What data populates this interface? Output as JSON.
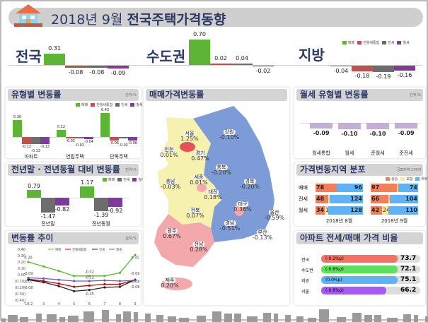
{
  "header": {
    "year_month": "2018년 9월",
    "title": "전국주택가격동향"
  },
  "colors": {
    "sale": "#5db536",
    "total": "#c0504d",
    "jeonse": "#6d6d6d",
    "monthly": "#7d3c98",
    "monthly_light": "#c3aed6",
    "rise": "#f47d5a",
    "flat": "#ffe699",
    "fall": "#5fb3f5"
  },
  "legend": {
    "sale": "매매",
    "total": "전월세통합",
    "jeonse": "전세",
    "monthly": "월세"
  },
  "summary": [
    {
      "region": "전국",
      "values": [
        0.31,
        -0.08,
        -0.08,
        -0.09
      ]
    },
    {
      "region": "수도권",
      "values": [
        0.7,
        0.02,
        0.04,
        -0.02
      ]
    },
    {
      "region": "지방",
      "values": [
        -0.04,
        -0.18,
        -0.19,
        -0.16
      ]
    }
  ],
  "type_change": {
    "title": "유형별 변동률",
    "unit": "단위:%",
    "groups": [
      {
        "label": "아파트",
        "values": [
          0.3,
          -0.12,
          -0.13,
          -0.13
        ]
      },
      {
        "label": "연립주택",
        "values": [
          0.12,
          -0.02,
          -0.02,
          -0.04
        ]
      },
      {
        "label": "단독주택",
        "values": [
          0.43,
          -0.06,
          -0.02,
          -0.06
        ]
      }
    ]
  },
  "yoy_change": {
    "title": "전년말 · 전년동월 대비 변동률",
    "unit": "단위:%",
    "groups": [
      {
        "label": "전년말",
        "values": [
          0.79,
          -1.47,
          -0.82
        ]
      },
      {
        "label": "전년동월",
        "values": [
          1.17,
          -1.39,
          -0.92
        ]
      }
    ]
  },
  "trend": {
    "title": "변동률 추이",
    "unit": "단위:%",
    "x": [
      "'18.2",
      "3",
      "4",
      "5",
      "6",
      "7",
      "8",
      "9"
    ],
    "yticks": [
      "0.40",
      "0.30",
      "0.20",
      "0.10",
      "0.00",
      "(0.10)",
      "(0.20)",
      "(0.30)",
      "(0.40)"
    ],
    "ylim": [
      -0.4,
      0.4
    ],
    "series": [
      {
        "name": "매매",
        "values": [
          0.2,
          0.13,
          0.06,
          -0.02,
          -0.02,
          -0.02,
          0.03,
          0.31
        ]
      },
      {
        "name": "전월세통합",
        "values": [
          -0.07,
          -0.1,
          -0.14,
          -0.19,
          -0.17,
          -0.15,
          -0.15,
          -0.08
        ]
      },
      {
        "name": "전세",
        "values": [
          -0.08,
          -0.12,
          -0.18,
          -0.26,
          -0.24,
          -0.2,
          -0.19,
          -0.08
        ]
      },
      {
        "name": "월세",
        "values": [
          -0.05,
          -0.06,
          -0.08,
          -0.1,
          -0.1,
          -0.09,
          -0.1,
          -0.09
        ]
      }
    ],
    "annotations": [
      "0.20",
      "-0.09",
      "-0.07",
      "-0.08",
      "-0.02",
      "-0.12",
      "-0.25",
      "0.31",
      "-0.09",
      "-0.08",
      "-0.08"
    ]
  },
  "map": {
    "title": "매매가격변동률",
    "regions": [
      {
        "name": "서울",
        "value": "1.25%"
      },
      {
        "name": "인천",
        "value": "0.01%"
      },
      {
        "name": "경기",
        "value": "0.47%"
      },
      {
        "name": "강원",
        "value": "-0.10%"
      },
      {
        "name": "충북",
        "value": "-0.20%"
      },
      {
        "name": "세종",
        "value": "0.01%"
      },
      {
        "name": "충남",
        "value": "-0.03%"
      },
      {
        "name": "대전",
        "value": "0.18%"
      },
      {
        "name": "경북",
        "value": "-0.20%"
      },
      {
        "name": "대구",
        "value": "0.36%"
      },
      {
        "name": "전북",
        "value": "0.07%"
      },
      {
        "name": "울산",
        "value": "-0.59%"
      },
      {
        "name": "경남",
        "value": "-0.51%"
      },
      {
        "name": "부산",
        "value": "-0.13%"
      },
      {
        "name": "광주",
        "value": "0.67%"
      },
      {
        "name": "전남",
        "value": "0.28%"
      },
      {
        "name": "제주",
        "value": "0.20%"
      }
    ]
  },
  "monthly_type": {
    "title": "월세 유형별 변동률",
    "unit": "단위:%",
    "items": [
      {
        "label": "월세통합",
        "value": -0.09
      },
      {
        "label": "월세",
        "value": -0.1
      },
      {
        "label": "준월세",
        "value": -0.1
      },
      {
        "label": "준전세",
        "value": -0.09
      }
    ]
  },
  "distribution": {
    "title": "가격변동지역 분포",
    "unit": "공표지역 176개",
    "legend": [
      "상승",
      "보합",
      "하락"
    ],
    "rows": [
      "매매",
      "전세",
      "월세"
    ],
    "periods": [
      {
        "label": "2018년 8월",
        "data": [
          [
            78,
            2,
            96
          ],
          [
            48,
            4,
            124
          ],
          [
            34,
            14,
            128
          ]
        ]
      },
      {
        "label": "2018년 9월",
        "data": [
          [
            97,
            5,
            74
          ],
          [
            66,
            6,
            104
          ],
          [
            42,
            24,
            110
          ]
        ]
      }
    ]
  },
  "ratio": {
    "title": "아파트 전세/매매 가격 비율",
    "items": [
      {
        "label": "전국",
        "change": "(-0.2%p)",
        "value": "73.7",
        "color": "#f47166"
      },
      {
        "label": "수도권",
        "change": "(-0.6%p)",
        "value": "72.1",
        "color": "#5ee05e"
      },
      {
        "label": "지방",
        "change": "(0.0%p)",
        "value": "75.1",
        "color": "#5fb3f5"
      },
      {
        "label": "서울",
        "change": "(-0.8%p)",
        "value": "66.2",
        "color": "#a35cf0"
      }
    ]
  }
}
